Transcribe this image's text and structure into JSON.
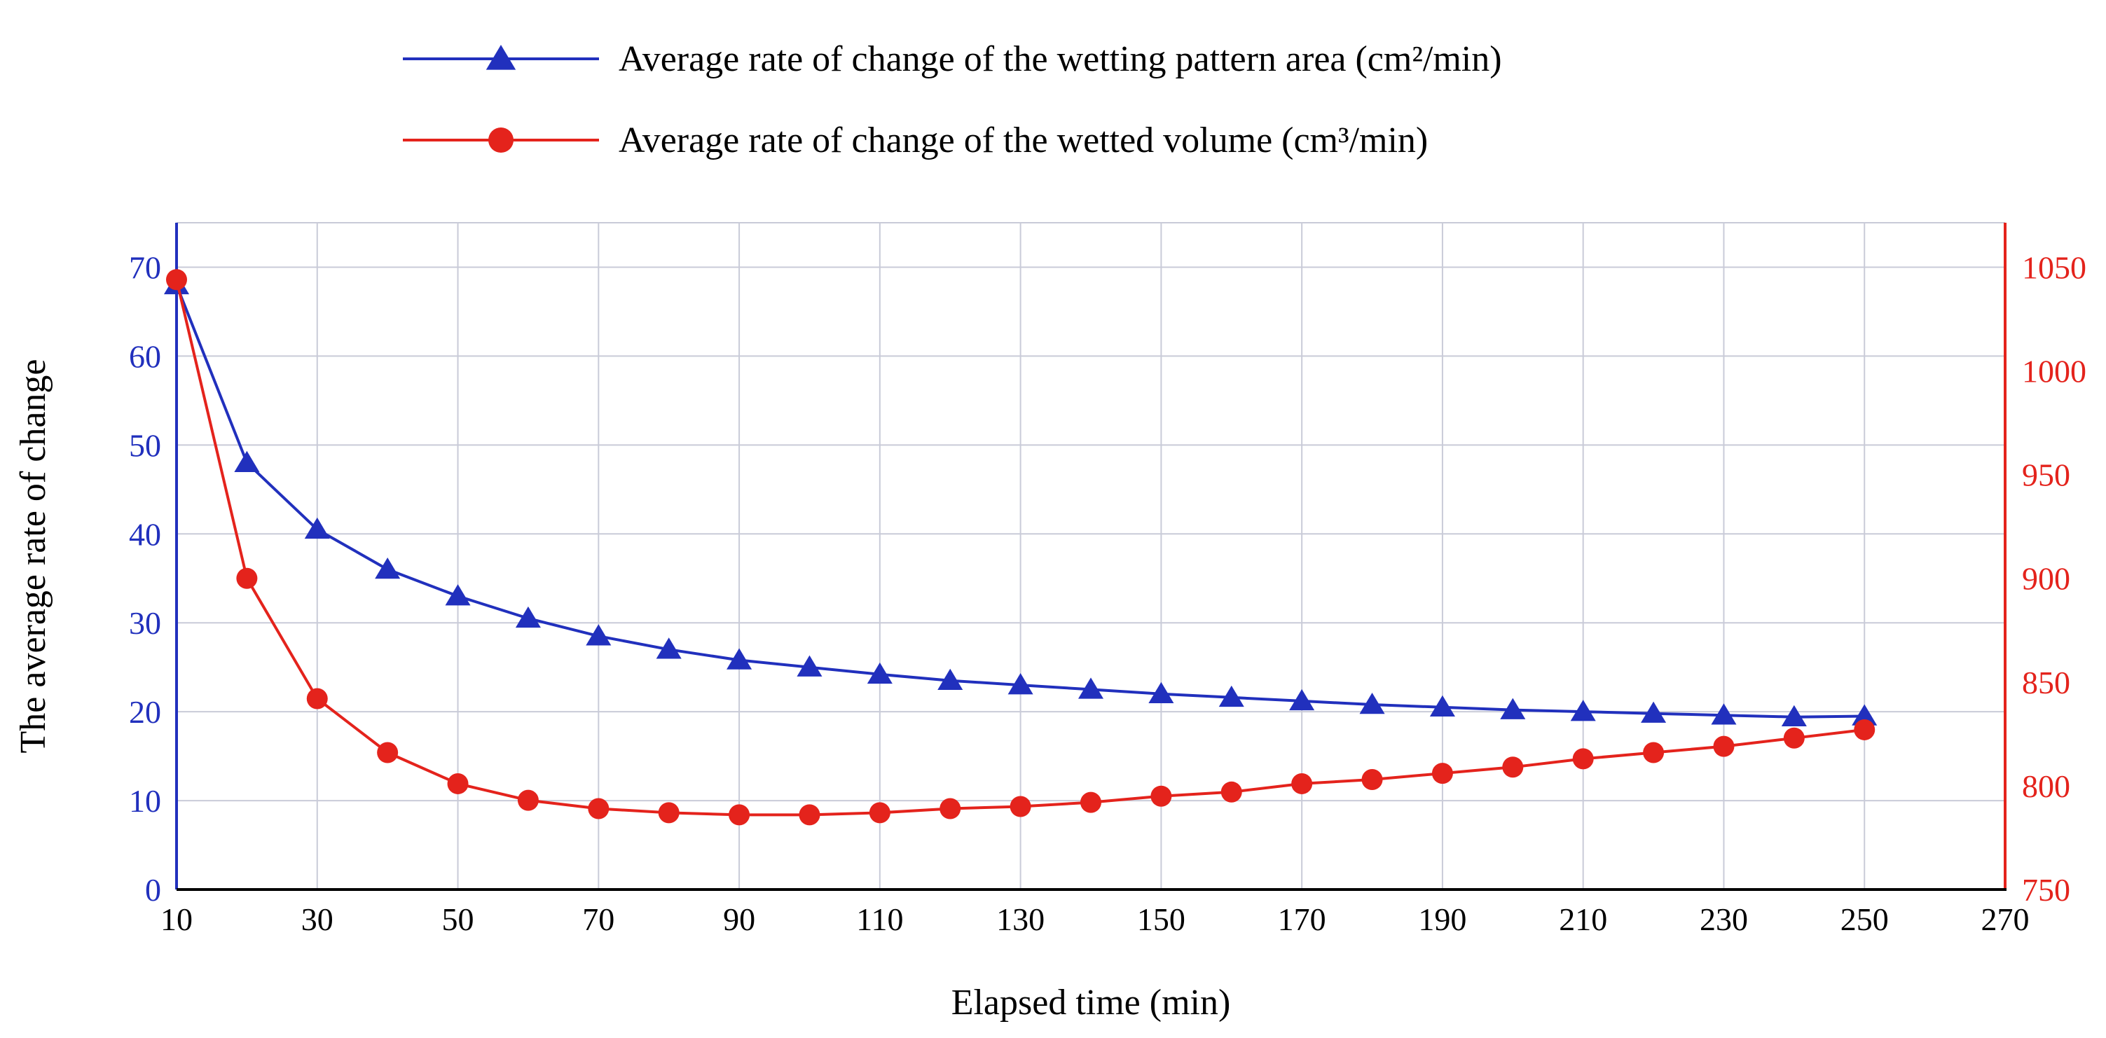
{
  "chart_data": {
    "type": "line",
    "title": "",
    "xlabel": "Elapsed time (min)",
    "ylabel_left": "The average rate of change",
    "grid": true,
    "legend_position": "top-left",
    "x_axis": {
      "min": 10,
      "max": 270,
      "ticks": [
        10,
        30,
        50,
        70,
        90,
        110,
        130,
        150,
        170,
        190,
        210,
        230,
        250,
        270
      ]
    },
    "y_axis_left": {
      "min": 0,
      "max": 70,
      "plot_max": 75,
      "ticks": [
        0,
        10,
        20,
        30,
        40,
        50,
        60,
        70
      ],
      "color": "#2130BD"
    },
    "y_axis_right": {
      "min": 750,
      "max": 1050,
      "ticks": [
        750,
        800,
        850,
        900,
        950,
        1000,
        1050
      ],
      "color": "#E4231C"
    },
    "x": [
      10,
      20,
      30,
      40,
      50,
      60,
      70,
      80,
      90,
      100,
      110,
      120,
      130,
      140,
      150,
      160,
      170,
      180,
      190,
      200,
      210,
      220,
      230,
      240,
      250
    ],
    "series": [
      {
        "name": "Average rate of change of the wetting pattern area (cm²/min)",
        "axis": "left",
        "color": "#2130BD",
        "marker": "triangle",
        "values": [
          68,
          48,
          40.5,
          36,
          33,
          30.5,
          28.5,
          27,
          25.8,
          25,
          24.2,
          23.5,
          23,
          22.5,
          22,
          21.6,
          21.2,
          20.8,
          20.5,
          20.2,
          20,
          19.8,
          19.6,
          19.4,
          19.5
        ]
      },
      {
        "name": "Average rate of change of the wetted volume (cm³/min)",
        "axis": "right",
        "color": "#E4231C",
        "marker": "circle",
        "values": [
          1044,
          900,
          842,
          816,
          801,
          793,
          789,
          787,
          786,
          786,
          787,
          789,
          790,
          792,
          795,
          797,
          801,
          803,
          806,
          809,
          813,
          816,
          819,
          823,
          827
        ]
      }
    ]
  },
  "colors": {
    "grid": "#C9CBD8",
    "axis_bottom": "#000000",
    "text": "#000000",
    "background": "#FFFFFF"
  }
}
